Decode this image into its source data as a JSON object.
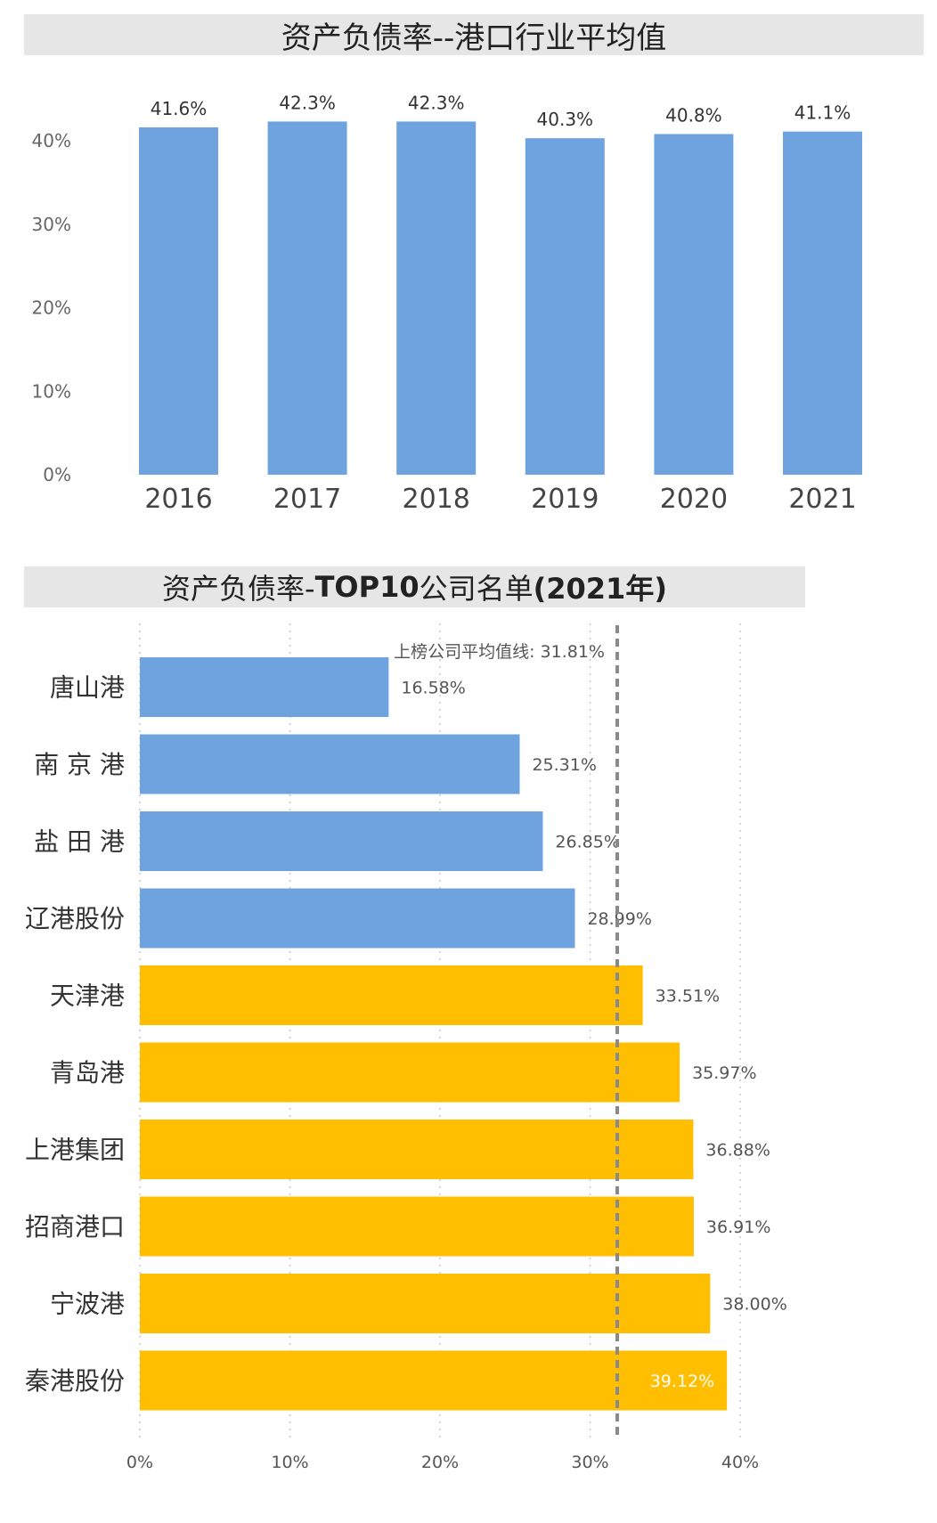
{
  "chart_data": [
    {
      "type": "bar",
      "title": "资产负债率--港口行业平均值",
      "categories": [
        "2016",
        "2017",
        "2018",
        "2019",
        "2020",
        "2021"
      ],
      "values": [
        41.6,
        42.3,
        42.3,
        40.3,
        40.8,
        41.1
      ],
      "value_labels": [
        "41.6%",
        "42.3%",
        "42.3%",
        "40.3%",
        "40.8%",
        "41.1%"
      ],
      "yticks": [
        "0%",
        "10%",
        "20%",
        "30%",
        "40%"
      ],
      "ylim": [
        0,
        40
      ],
      "bar_color": "#6fa3e0",
      "grid": false
    },
    {
      "type": "bar",
      "orientation": "horizontal",
      "title_parts": [
        "资产负债率-",
        "TOP10",
        "公司名单",
        "(2021年)"
      ],
      "categories": [
        "唐山港",
        "南 京 港",
        "盐 田 港",
        "辽港股份",
        "天津港",
        "青岛港",
        "上港集团",
        "招商港口",
        "宁波港",
        "秦港股份"
      ],
      "values": [
        16.58,
        25.31,
        26.85,
        28.99,
        33.51,
        35.97,
        36.88,
        36.91,
        38.0,
        39.12
      ],
      "value_labels": [
        "16.58%",
        "25.31%",
        "26.85%",
        "28.99%",
        "33.51%",
        "35.97%",
        "36.88%",
        "36.91%",
        "38.00%",
        "39.12%"
      ],
      "xticks": [
        "0%",
        "10%",
        "20%",
        "30%",
        "40%"
      ],
      "xlim": [
        0,
        40
      ],
      "average": 31.81,
      "average_label": "上榜公司平均值线: 31.81%",
      "below_average_color": "#6fa3e0",
      "above_average_color": "#ffbe00",
      "grid": true
    }
  ]
}
